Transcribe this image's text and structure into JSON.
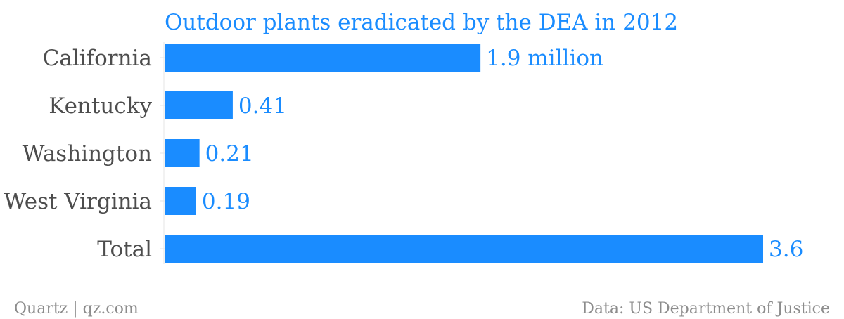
{
  "chart_data": {
    "type": "bar",
    "orientation": "horizontal",
    "title": "Outdoor plants eradicated by the DEA in 2012",
    "categories": [
      "California",
      "Kentucky",
      "Washington",
      "West Virginia",
      "Total"
    ],
    "values": [
      1.9,
      0.41,
      0.21,
      0.19,
      3.6
    ],
    "value_labels": [
      "1.9 million",
      "0.41",
      "0.21",
      "0.19",
      "3.6"
    ],
    "unit": "million",
    "xlim": [
      0,
      3.6
    ],
    "grid": false,
    "legend": "none"
  },
  "footer": {
    "source_left": "Quartz | qz.com",
    "source_right": "Data: US Department of Justice"
  },
  "colors": {
    "bar": "#1a8cff",
    "title": "#1a8cff",
    "value_label": "#1a8cff",
    "category_label": "#4d4d4d",
    "footer": "#8c8c8c",
    "axis": "#e5e5e5"
  }
}
